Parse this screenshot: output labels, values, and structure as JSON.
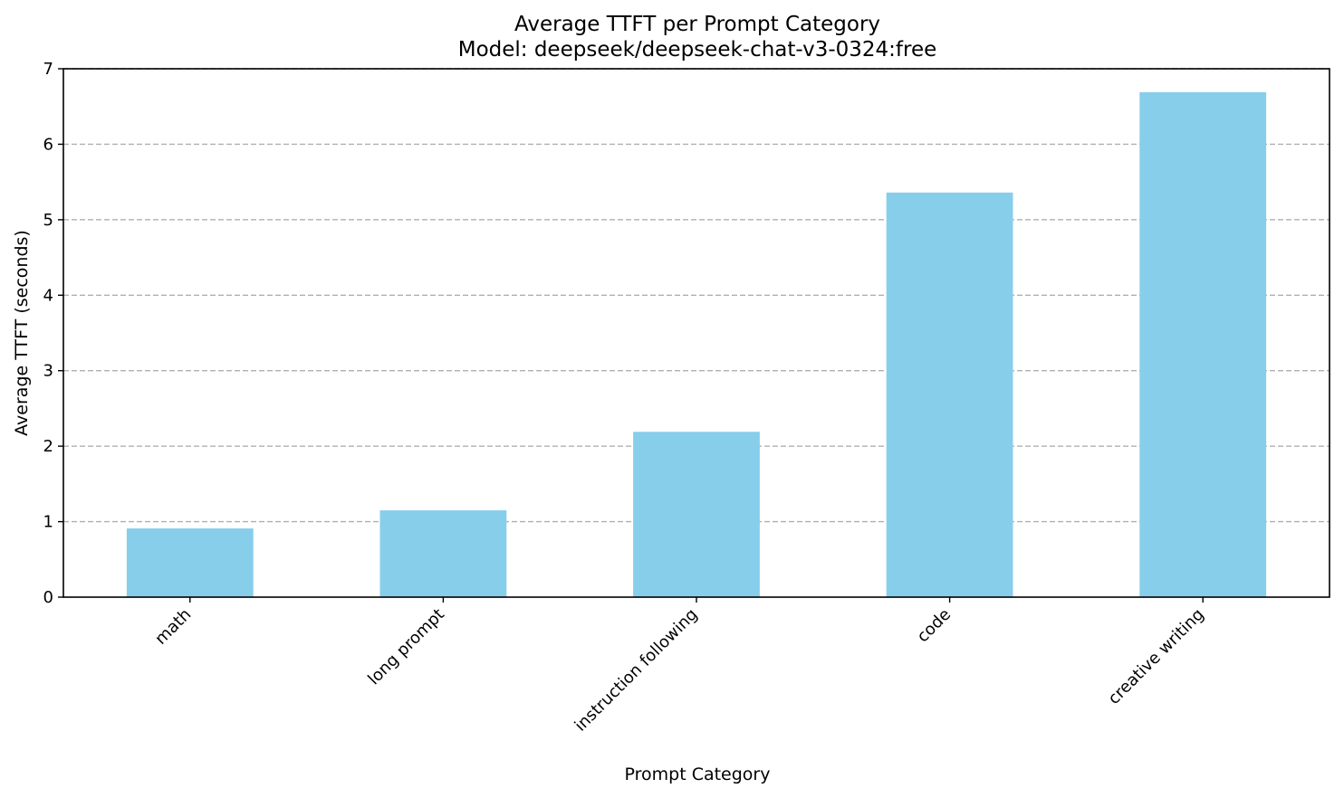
{
  "chart_data": {
    "type": "bar",
    "title": "Average TTFT per Prompt Category",
    "subtitle": "Model: deepseek/deepseek-chat-v3-0324:free",
    "xlabel": "Prompt Category",
    "ylabel": "Average TTFT (seconds)",
    "categories": [
      "math",
      "long prompt",
      "instruction following",
      "code",
      "creative writing"
    ],
    "values": [
      0.91,
      1.15,
      2.19,
      5.36,
      6.69
    ],
    "ylim": [
      0,
      7
    ],
    "yticks": [
      "0",
      "1",
      "2",
      "3",
      "4",
      "5",
      "6",
      "7"
    ],
    "grid": "horizontal dashed",
    "bar_color": "#87ceeb",
    "legend": "none"
  }
}
